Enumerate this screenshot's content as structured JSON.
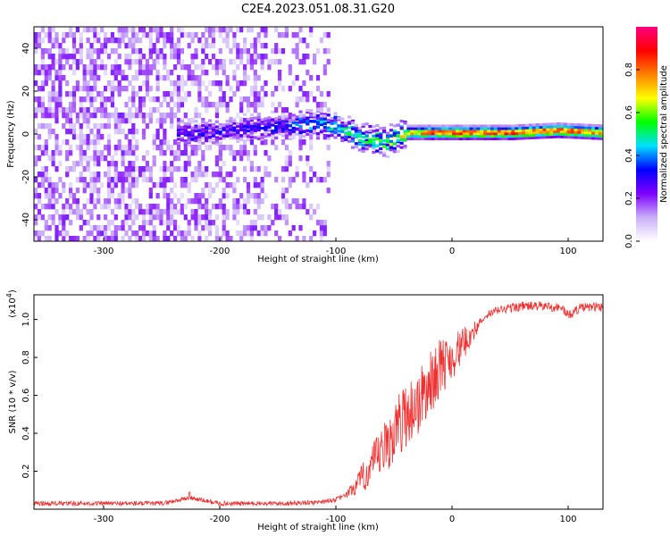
{
  "title": "C2E4.2023.051.08.31.G20",
  "chart_data": [
    {
      "type": "heatmap",
      "xlabel": "Height of straight line (km)",
      "ylabel": "Frequency (Hz)",
      "xlim": [
        -360,
        130
      ],
      "ylim": [
        -50,
        50
      ],
      "x_ticks": [
        -300,
        -200,
        -100,
        0,
        100
      ],
      "y_ticks": [
        -40,
        -20,
        0,
        20,
        40
      ],
      "colorbar": {
        "label": "Normalized spectral amplitude",
        "range": [
          0.0,
          1.0
        ],
        "ticks": [
          0.0,
          0.2,
          0.4,
          0.6,
          0.8
        ],
        "colormap": [
          "#ffffff",
          "#c8b0f8",
          "#8000ff",
          "#0000ff",
          "#00e0ff",
          "#00ff00",
          "#ffff00",
          "#ff8000",
          "#ff0000",
          "#ff0080"
        ]
      },
      "ridge": [
        {
          "x": -225,
          "f": 0,
          "amp": 0.3
        },
        {
          "x": -150,
          "f": 3,
          "amp": 0.35
        },
        {
          "x": -120,
          "f": 5,
          "amp": 0.45
        },
        {
          "x": -100,
          "f": 3,
          "amp": 0.5
        },
        {
          "x": -80,
          "f": -2,
          "amp": 0.55
        },
        {
          "x": -60,
          "f": -4,
          "amp": 0.6
        },
        {
          "x": -40,
          "f": 0,
          "amp": 0.7
        },
        {
          "x": -20,
          "f": 0,
          "amp": 0.85
        },
        {
          "x": 0,
          "f": 0,
          "amp": 0.9
        },
        {
          "x": 50,
          "f": 0,
          "amp": 0.85
        },
        {
          "x": 90,
          "f": 1,
          "amp": 0.9
        },
        {
          "x": 130,
          "f": 0,
          "amp": 0.8
        }
      ]
    },
    {
      "type": "line",
      "xlabel": "Height of straight line (km)",
      "ylabel": "SNR (10 * v/v)",
      "y_multiplier": "(x10",
      "y_multiplier_exp": "4",
      "y_multiplier_close": ")",
      "xlim": [
        -360,
        130
      ],
      "ylim": [
        0,
        1.13
      ],
      "x_ticks": [
        -300,
        -200,
        -100,
        0,
        100
      ],
      "y_ticks": [
        0.2,
        0.4,
        0.6,
        0.8,
        1.0
      ],
      "series": [
        {
          "color": "#f03030",
          "x": [
            -360,
            -300,
            -250,
            -226,
            -200,
            -150,
            -120,
            -100,
            -90,
            -80,
            -70,
            -60,
            -50,
            -40,
            -30,
            -20,
            -10,
            0,
            10,
            20,
            30,
            40,
            60,
            80,
            95,
            100,
            110,
            130
          ],
          "y": [
            0.03,
            0.03,
            0.03,
            0.06,
            0.03,
            0.03,
            0.035,
            0.05,
            0.08,
            0.14,
            0.22,
            0.3,
            0.4,
            0.5,
            0.55,
            0.65,
            0.75,
            0.8,
            0.87,
            0.95,
            1.02,
            1.05,
            1.07,
            1.07,
            1.06,
            1.02,
            1.06,
            1.07
          ]
        }
      ]
    }
  ]
}
